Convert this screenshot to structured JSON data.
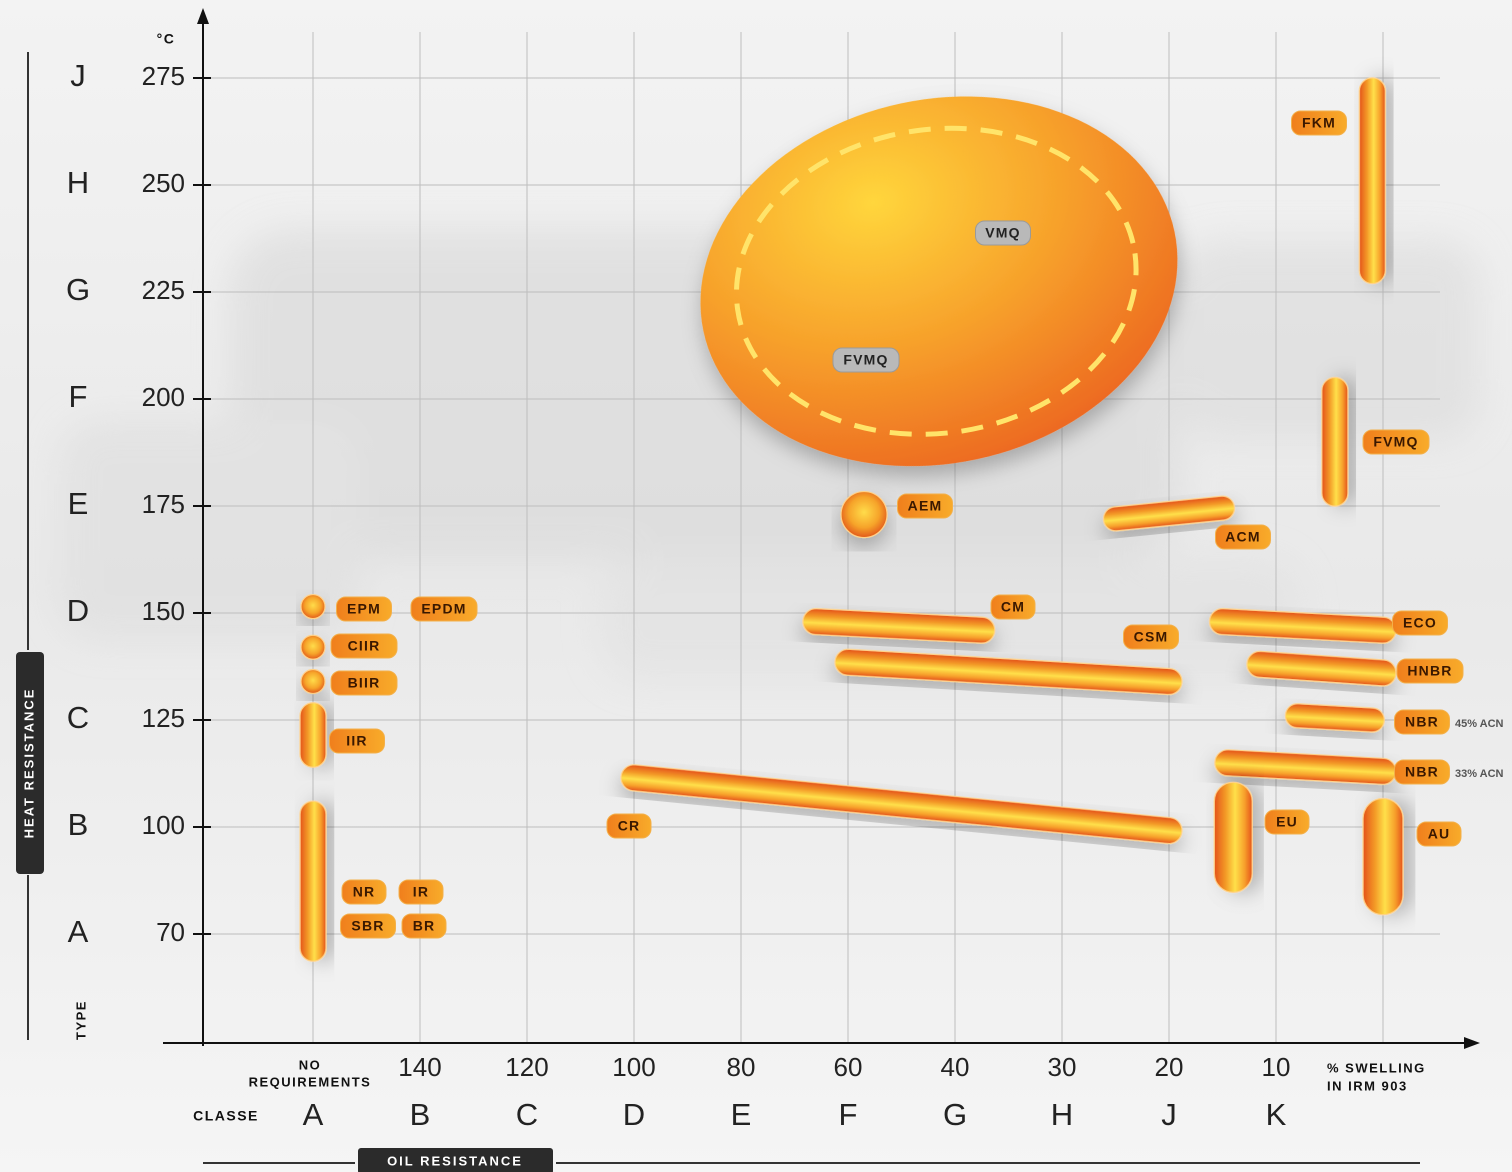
{
  "chart_data": {
    "type": "range",
    "y_unit": "°C",
    "y_title": "HEAT RESISTANCE",
    "y_class_title": "TYPE",
    "yticks": [
      70,
      100,
      125,
      150,
      175,
      200,
      225,
      250,
      275
    ],
    "y_classes": [
      "A",
      "B",
      "C",
      "D",
      "E",
      "F",
      "G",
      "H",
      "J"
    ],
    "x_title": "OIL RESISTANCE",
    "x_class_title": "CLASSE",
    "x_no_requirements": [
      "NO",
      "REQUIREMENTS"
    ],
    "x_unit": [
      "% SWELLING",
      "IN IRM 903"
    ],
    "xticks": [
      140,
      120,
      100,
      80,
      60,
      40,
      30,
      20,
      10
    ],
    "x_classes": [
      "A",
      "B",
      "C",
      "D",
      "E",
      "F",
      "G",
      "H",
      "J",
      "K"
    ],
    "grid": true,
    "color": "#f08a1e",
    "materials": [
      {
        "names": [
          "VMQ"
        ],
        "shape": "ellipse",
        "heat": [
          185,
          270
        ],
        "swell": [
          88,
          19
        ]
      },
      {
        "names": [
          "FVMQ"
        ],
        "shape": "ring",
        "heat": [
          192,
          263
        ],
        "swell": [
          81,
          23
        ]
      },
      {
        "names": [
          "FKM"
        ],
        "heat": [
          230,
          272
        ],
        "swell": [
          1,
          1
        ]
      },
      {
        "names": [
          "FVMQ"
        ],
        "heat": [
          178,
          202
        ],
        "swell": [
          4.5,
          4.5
        ]
      },
      {
        "names": [
          "AEM"
        ],
        "heat": [
          173,
          173
        ],
        "swell": [
          57,
          57
        ]
      },
      {
        "names": [
          "ACM"
        ],
        "heat": [
          172,
          174.5
        ],
        "swell": [
          25,
          15
        ]
      },
      {
        "names": [
          "CM"
        ],
        "heat": [
          148,
          146
        ],
        "swell": [
          66,
          37.5
        ]
      },
      {
        "names": [
          "CSM"
        ],
        "heat": [
          138.5,
          134
        ],
        "swell": [
          60,
          20
        ]
      },
      {
        "names": [
          "ECO"
        ],
        "heat": [
          148,
          146
        ],
        "swell": [
          15,
          0
        ]
      },
      {
        "names": [
          "HNBR"
        ],
        "heat": [
          138,
          136
        ],
        "swell": [
          11.5,
          0
        ]
      },
      {
        "names": [
          "NBR"
        ],
        "note": "45% ACN",
        "heat": [
          126,
          125
        ],
        "swell": [
          8,
          1
        ]
      },
      {
        "names": [
          "NBR"
        ],
        "note": "33% ACN",
        "heat": [
          115,
          113
        ],
        "swell": [
          14.5,
          0
        ]
      },
      {
        "names": [
          "EU"
        ],
        "heat": [
          87,
          106
        ],
        "swell": [
          14,
          14
        ]
      },
      {
        "names": [
          "AU"
        ],
        "heat": [
          81,
          102
        ],
        "swell": [
          0,
          0
        ]
      },
      {
        "names": [
          "CR"
        ],
        "heat": [
          111.5,
          99
        ],
        "swell": [
          100,
          20
        ]
      },
      {
        "names": [
          "EPM",
          "EPDM"
        ],
        "heat": [
          151.5,
          151.5
        ],
        "swell": [
          null,
          null
        ]
      },
      {
        "names": [
          "CIIR"
        ],
        "heat": [
          142,
          142
        ],
        "swell": [
          null,
          null
        ]
      },
      {
        "names": [
          "BIIR"
        ],
        "heat": [
          134,
          134
        ],
        "swell": [
          null,
          null
        ]
      },
      {
        "names": [
          "IIR"
        ],
        "heat": [
          117,
          126
        ],
        "swell": [
          null,
          null
        ]
      },
      {
        "names": [
          "NR",
          "IR",
          "SBR",
          "BR"
        ],
        "heat": [
          66,
          103
        ],
        "swell": [
          null,
          null
        ]
      }
    ]
  }
}
